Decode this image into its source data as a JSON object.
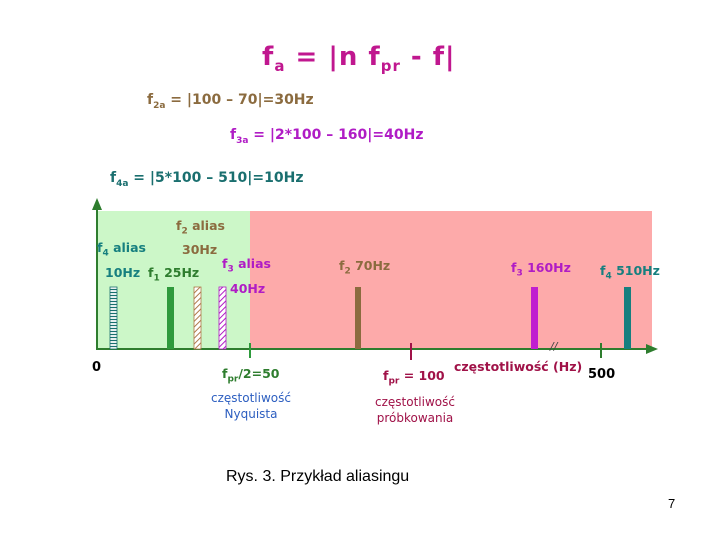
{
  "formulas": {
    "main": {
      "lhs": "f",
      "lhs_sub": "a",
      "mid": " = |n f",
      "mid_sub": "pr",
      "rhs": " - f|"
    },
    "f2a": {
      "sym": "f",
      "sub": "2a",
      "expr": " = |100 – 70|=30Hz"
    },
    "f3a": {
      "sym": "f",
      "sub": "3a",
      "expr": " = |2*100 – 160|=40Hz"
    },
    "f4a": {
      "sym": "f",
      "sub": "4a",
      "expr": " = |5*100 – 510|=10Hz"
    }
  },
  "labels": {
    "f2_alias": {
      "sym": "f",
      "sub": "2",
      "text": " alias"
    },
    "f2_alias_hz": "30Hz",
    "f4_alias": {
      "sym": "f",
      "sub": "4",
      "text": " alias"
    },
    "f4_alias_hz": "10Hz",
    "f1": {
      "sym": "f",
      "sub": "1",
      "text": " 25Hz"
    },
    "f3_alias": {
      "sym": "f",
      "sub": "3",
      "text": " alias"
    },
    "f3_alias_hz": "40Hz",
    "f2": {
      "sym": "f",
      "sub": "2",
      "text": " 70Hz"
    },
    "f3": {
      "sym": "f",
      "sub": "3",
      "text": " 160Hz"
    },
    "f4": {
      "sym": "f",
      "sub": "4",
      "text": " 510Hz"
    },
    "fpr_half": {
      "sym": "f",
      "sub": "pr",
      "text": "/2=50"
    },
    "nyquist_line1": "częstotliwość",
    "nyquist_line2": "Nyquista",
    "fpr": {
      "sym": "f",
      "sub": "pr",
      "text": " = 100"
    },
    "sampling_line1": "częstotliwość",
    "sampling_line2": "próbkowania",
    "axis_label": "częstotliwość (Hz)",
    "break_mark": "//",
    "zero": "0",
    "tick_500": "500"
  },
  "caption": "Rys. 3. Przykład aliasingu",
  "page_number": "7",
  "colors": {
    "green_zone": "#ccf7c8",
    "red_zone": "#fdaaaa",
    "f1_bar": "#2e9a3c",
    "f2_bar": "#8b6b3f",
    "f3_bar": "#c01ed0",
    "f4_bar": "#167f7f",
    "axis": "#2e7d2e"
  }
}
